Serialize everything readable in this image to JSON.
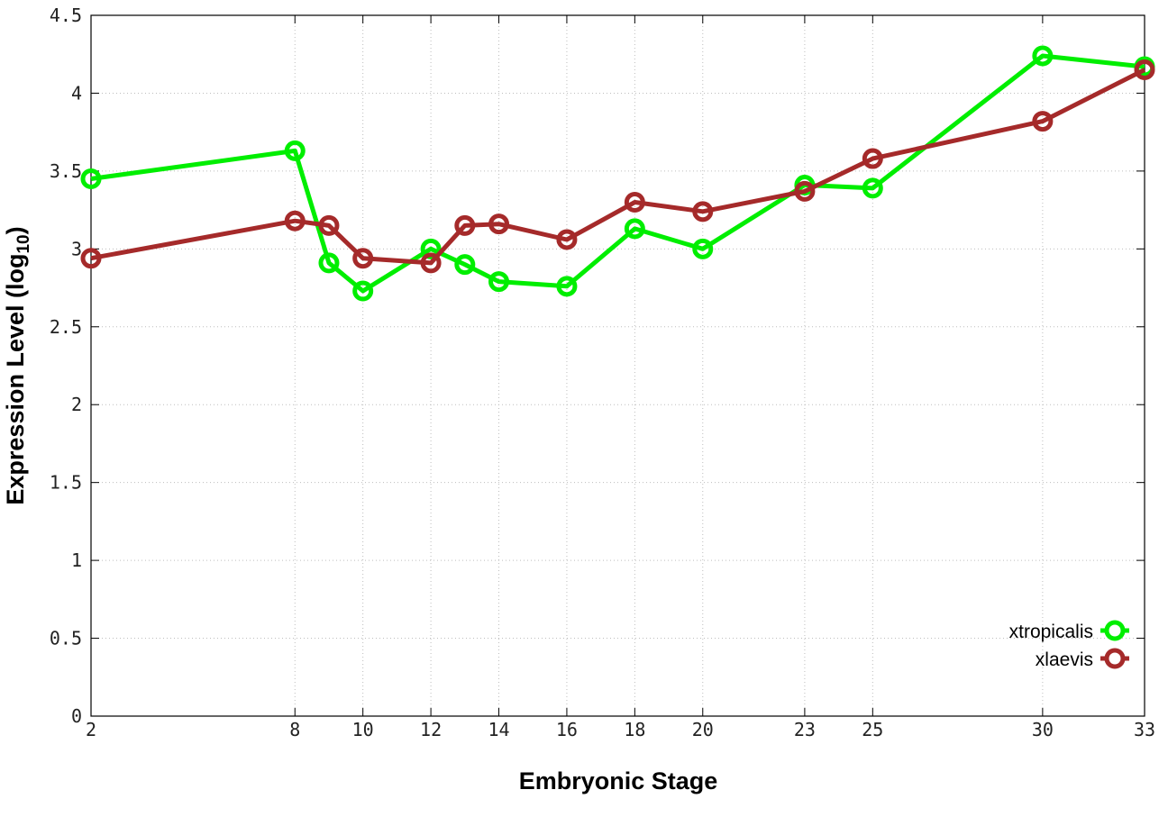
{
  "chart_data": {
    "type": "line",
    "title": "",
    "xlabel": "Embryonic Stage",
    "ylabel_main": "Expression Level (log",
    "ylabel_sub": "10",
    "ylabel_close": ")",
    "x_scale": "linear",
    "x_ticks": [
      2,
      8,
      10,
      12,
      14,
      16,
      18,
      20,
      23,
      25,
      30,
      33
    ],
    "x_tick_labels": [
      "2",
      "8",
      "10",
      "12",
      "14",
      "16",
      "18",
      "20",
      "23",
      "25",
      "30",
      "33"
    ],
    "x_categorical": true,
    "ylim": [
      0,
      4.5
    ],
    "y_ticks": [
      0,
      0.5,
      1,
      1.5,
      2,
      2.5,
      3,
      3.5,
      4,
      4.5
    ],
    "y_tick_labels": [
      "0",
      "0.5",
      "1",
      "1.5",
      "2",
      "2.5",
      "3",
      "3.5",
      "4",
      "4.5"
    ],
    "grid": true,
    "legend_position": "bottom-right",
    "series": [
      {
        "name": "xtropicalis",
        "color": "#00ee00",
        "points": [
          {
            "x": "2",
            "y": 3.45
          },
          {
            "x": "8",
            "y": 3.63
          },
          {
            "x": "9",
            "y": 2.91
          },
          {
            "x": "10",
            "y": 2.73
          },
          {
            "x": "12",
            "y": 3.0
          },
          {
            "x": "13",
            "y": 2.9
          },
          {
            "x": "14",
            "y": 2.79
          },
          {
            "x": "16",
            "y": 2.76
          },
          {
            "x": "18",
            "y": 3.13
          },
          {
            "x": "20",
            "y": 3.0
          },
          {
            "x": "23",
            "y": 3.41
          },
          {
            "x": "25",
            "y": 3.39
          },
          {
            "x": "30",
            "y": 4.24
          },
          {
            "x": "33",
            "y": 4.17
          }
        ]
      },
      {
        "name": "xlaevis",
        "color": "#a52a2a",
        "points": [
          {
            "x": "2",
            "y": 2.94
          },
          {
            "x": "8",
            "y": 3.18
          },
          {
            "x": "9",
            "y": 3.15
          },
          {
            "x": "10",
            "y": 2.94
          },
          {
            "x": "12",
            "y": 2.91
          },
          {
            "x": "13",
            "y": 3.15
          },
          {
            "x": "14",
            "y": 3.16
          },
          {
            "x": "16",
            "y": 3.06
          },
          {
            "x": "18",
            "y": 3.3
          },
          {
            "x": "20",
            "y": 3.24
          },
          {
            "x": "23",
            "y": 3.37
          },
          {
            "x": "25",
            "y": 3.58
          },
          {
            "x": "30",
            "y": 3.82
          },
          {
            "x": "33",
            "y": 4.15
          }
        ]
      }
    ]
  }
}
